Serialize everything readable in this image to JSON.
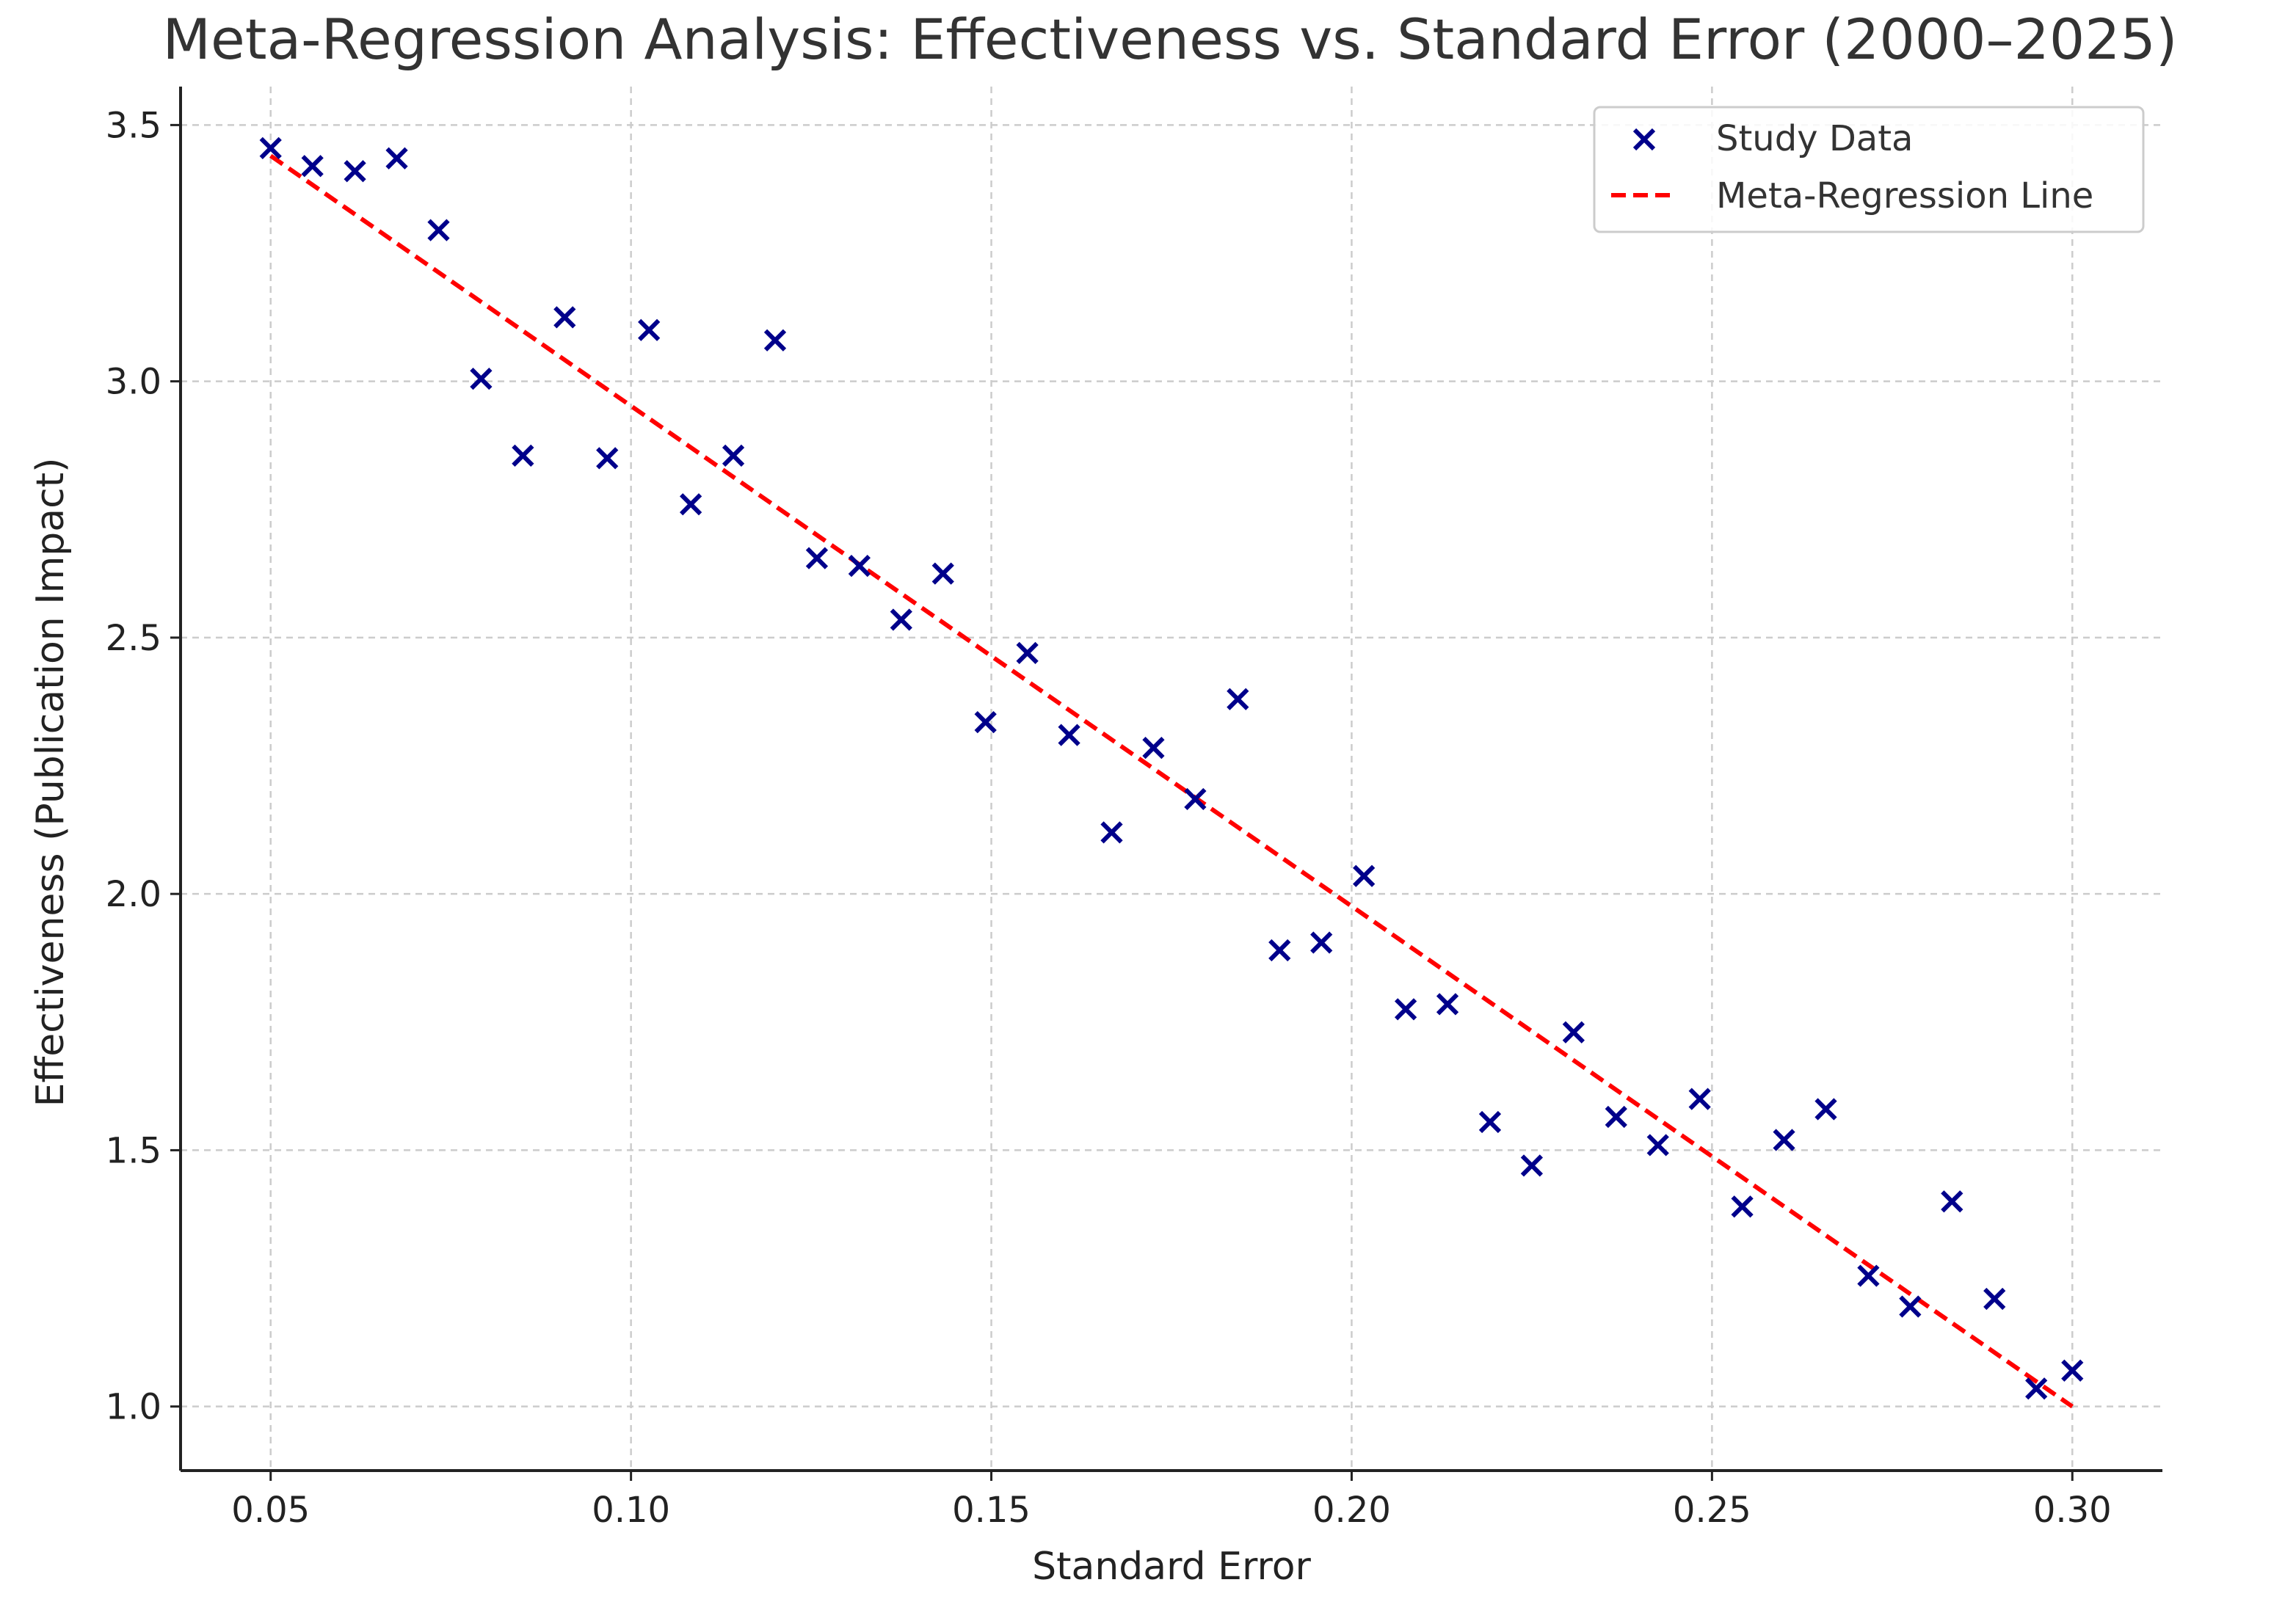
{
  "chart_data": {
    "type": "scatter",
    "title": "Meta-Regression Analysis: Effectiveness vs. Standard Error (2000–2025)",
    "xlabel": "Standard Error",
    "ylabel": "Effectiveness (Publication Impact)",
    "xlim": [
      0.0375,
      0.3125
    ],
    "ylim": [
      0.875,
      3.575
    ],
    "xticks": [
      "0.05",
      "0.10",
      "0.15",
      "0.20",
      "0.25",
      "0.30"
    ],
    "xtick_values": [
      0.05,
      0.1,
      0.15,
      0.2,
      0.25,
      0.3
    ],
    "yticks": [
      "1.0",
      "1.5",
      "2.0",
      "2.5",
      "3.0",
      "3.5"
    ],
    "ytick_values": [
      1.0,
      1.5,
      2.0,
      2.5,
      3.0,
      3.5
    ],
    "grid": true,
    "legend_position": "top-right",
    "series": [
      {
        "name": "Study Data",
        "kind": "scatter",
        "marker": "x",
        "color": "#00008b",
        "x": [
          0.05,
          0.0558,
          0.0617,
          0.0675,
          0.0733,
          0.0792,
          0.085,
          0.0908,
          0.0967,
          0.1025,
          0.1083,
          0.1142,
          0.12,
          0.1258,
          0.1317,
          0.1375,
          0.1433,
          0.1492,
          0.155,
          0.1608,
          0.1667,
          0.1725,
          0.1783,
          0.1842,
          0.19,
          0.1958,
          0.2017,
          0.2075,
          0.2133,
          0.2192,
          0.225,
          0.2308,
          0.2367,
          0.2425,
          0.2483,
          0.2542,
          0.26,
          0.2658,
          0.2717,
          0.2775,
          0.2833,
          0.2892,
          0.295,
          0.3
        ],
        "y": [
          3.455,
          3.42,
          3.41,
          3.435,
          3.295,
          3.005,
          2.855,
          3.125,
          2.85,
          3.1,
          2.76,
          2.855,
          3.08,
          2.655,
          2.64,
          2.535,
          2.625,
          2.335,
          2.47,
          2.31,
          2.12,
          2.285,
          2.185,
          2.38,
          1.89,
          1.905,
          2.035,
          1.775,
          1.785,
          1.555,
          1.47,
          1.73,
          1.565,
          1.51,
          1.6,
          1.39,
          1.52,
          1.58,
          1.255,
          1.195,
          1.4,
          1.21,
          1.035,
          1.07
        ]
      },
      {
        "name": "Meta-Regression Line",
        "kind": "line",
        "style": "dashed",
        "color": "#ff0000",
        "x": [
          0.05,
          0.3
        ],
        "y": [
          3.44,
          1.0
        ]
      }
    ]
  }
}
